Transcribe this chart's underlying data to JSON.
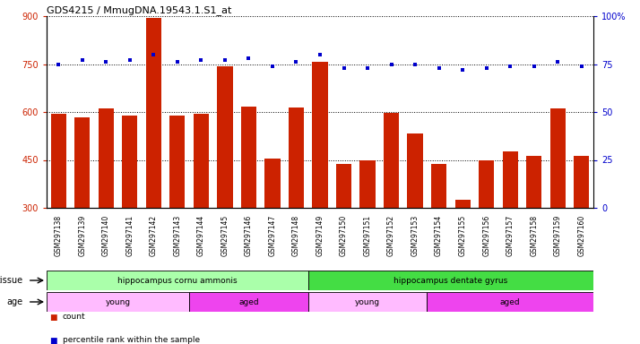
{
  "title": "GDS4215 / MmugDNA.19543.1.S1_at",
  "samples": [
    "GSM297138",
    "GSM297139",
    "GSM297140",
    "GSM297141",
    "GSM297142",
    "GSM297143",
    "GSM297144",
    "GSM297145",
    "GSM297146",
    "GSM297147",
    "GSM297148",
    "GSM297149",
    "GSM297150",
    "GSM297151",
    "GSM297152",
    "GSM297153",
    "GSM297154",
    "GSM297155",
    "GSM297156",
    "GSM297157",
    "GSM297158",
    "GSM297159",
    "GSM297160"
  ],
  "counts": [
    595,
    583,
    610,
    588,
    893,
    590,
    593,
    743,
    617,
    454,
    613,
    758,
    438,
    449,
    598,
    532,
    438,
    324,
    448,
    478,
    462,
    612,
    462
  ],
  "percentiles": [
    75,
    77,
    76,
    77,
    80,
    76,
    77,
    77,
    78,
    74,
    76,
    80,
    73,
    73,
    75,
    75,
    73,
    72,
    73,
    74,
    74,
    76,
    74
  ],
  "ylim_left": [
    300,
    900
  ],
  "ylim_right": [
    0,
    100
  ],
  "yticks_left": [
    300,
    450,
    600,
    750,
    900
  ],
  "yticks_right": [
    0,
    25,
    50,
    75,
    100
  ],
  "ytick_labels_right": [
    "0",
    "25",
    "50",
    "75",
    "100%"
  ],
  "bar_color": "#cc2200",
  "dot_color": "#0000cc",
  "bg_color": "#ffffff",
  "tissue_groups": [
    {
      "label": "hippocampus cornu ammonis",
      "start": 0,
      "end": 11,
      "color": "#aaffaa"
    },
    {
      "label": "hippocampus dentate gyrus",
      "start": 11,
      "end": 23,
      "color": "#44dd44"
    }
  ],
  "age_groups": [
    {
      "label": "young",
      "start": 0,
      "end": 6,
      "color": "#ffbbff"
    },
    {
      "label": "aged",
      "start": 6,
      "end": 11,
      "color": "#ee44ee"
    },
    {
      "label": "young",
      "start": 11,
      "end": 16,
      "color": "#ffbbff"
    },
    {
      "label": "aged",
      "start": 16,
      "end": 23,
      "color": "#ee44ee"
    }
  ],
  "legend_count_color": "#cc2200",
  "legend_pct_color": "#0000cc",
  "tissue_label": "tissue",
  "age_label": "age"
}
